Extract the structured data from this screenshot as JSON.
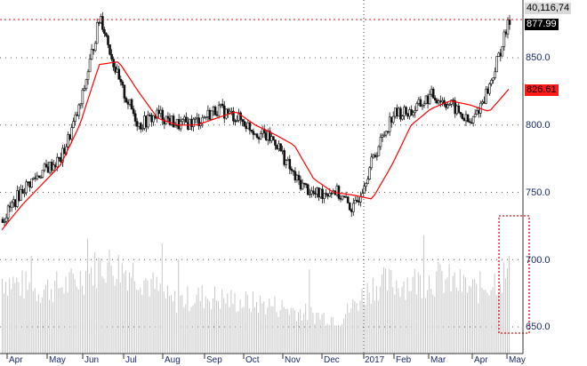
{
  "chart_data": {
    "type": "candlestick",
    "title": "",
    "xlabel": "",
    "ylabel": "",
    "ylim": [
      640,
      885
    ],
    "grid": true,
    "y_ticks": [
      "650.0",
      "700.0",
      "750.0",
      "800.0",
      "850.0"
    ],
    "x_ticks": [
      "Apr",
      "May",
      "Jun",
      "Jul",
      "Aug",
      "Sep",
      "Oct",
      "Nov",
      "Dec",
      "2017",
      "Feb",
      "Mar",
      "Apr",
      "May"
    ],
    "last_price_label": "877.99",
    "volume_label": "40,116,74",
    "moving_average_label": "826.61",
    "price_series": {
      "name": "Price",
      "points_monthly_approx": [
        {
          "x": "Apr",
          "close": 730
        },
        {
          "x": "May",
          "close": 752
        },
        {
          "x": "May-mid",
          "close": 765
        },
        {
          "x": "Jun",
          "close": 775
        },
        {
          "x": "Jun-mid",
          "close": 815
        },
        {
          "x": "Jul",
          "close": 882
        },
        {
          "x": "Jul-mid",
          "close": 830
        },
        {
          "x": "Aug",
          "close": 800
        },
        {
          "x": "Aug-mid",
          "close": 808
        },
        {
          "x": "Sep",
          "close": 800
        },
        {
          "x": "Sep-mid",
          "close": 803
        },
        {
          "x": "Oct",
          "close": 812
        },
        {
          "x": "Oct-mid",
          "close": 806
        },
        {
          "x": "Nov",
          "close": 795
        },
        {
          "x": "Nov-mid",
          "close": 788
        },
        {
          "x": "Dec",
          "close": 760
        },
        {
          "x": "Dec-mid",
          "close": 748
        },
        {
          "x": "2017",
          "close": 752
        },
        {
          "x": "Jan-mid",
          "close": 737
        },
        {
          "x": "Feb",
          "close": 775
        },
        {
          "x": "Feb-mid",
          "close": 808
        },
        {
          "x": "Mar",
          "close": 810
        },
        {
          "x": "Mar-mid",
          "close": 822
        },
        {
          "x": "Apr",
          "close": 815
        },
        {
          "x": "Apr-mid",
          "close": 800
        },
        {
          "x": "May",
          "close": 830
        },
        {
          "x": "May-end",
          "close": 877.99
        }
      ]
    },
    "moving_average": {
      "name": "Moving Average",
      "color": "#ff0000",
      "points_approx": [
        722,
        740,
        755,
        770,
        800,
        845,
        847,
        825,
        805,
        800,
        800,
        805,
        810,
        800,
        793,
        785,
        760,
        750,
        748,
        745,
        770,
        800,
        812,
        818,
        815,
        810,
        826.61
      ]
    },
    "volume_series": {
      "name": "Volume",
      "color": "#c8c8c8",
      "relative_heights_monthly": [
        0.65,
        0.55,
        0.6,
        0.78,
        0.7,
        0.45,
        0.5,
        0.45,
        0.42,
        0.35,
        0.3,
        0.6,
        0.62,
        0.65,
        0.55,
        0.7
      ]
    },
    "annotations": [
      {
        "type": "hline",
        "value": 877.99,
        "style": "red dotted"
      },
      {
        "type": "vline",
        "x": "2017",
        "style": "dotted"
      },
      {
        "type": "rect",
        "x_range": [
          "Apr-end",
          "May-end"
        ],
        "y_range": [
          645,
          733
        ],
        "style": "red dotted"
      }
    ]
  }
}
